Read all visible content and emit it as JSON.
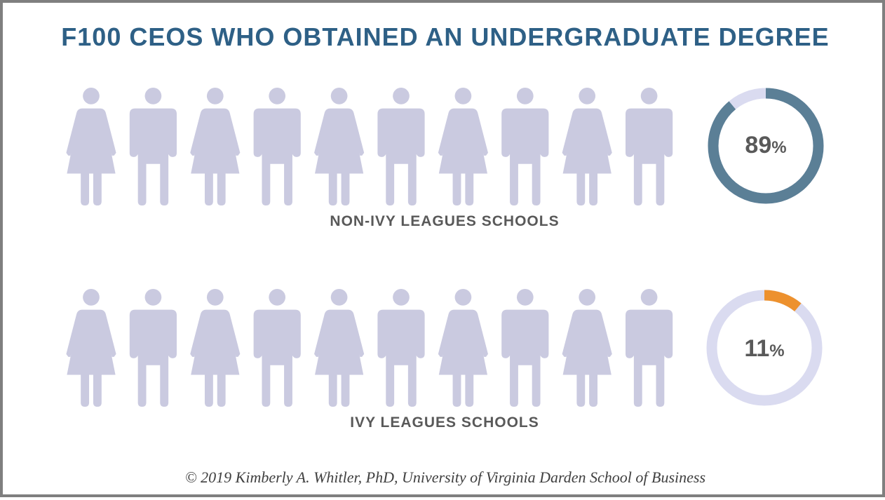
{
  "title": "F100 CEOS WHO OBTAINED AN UNDERGRADUATE DEGREE",
  "credit": "© 2019 Kimberly A. Whitler, PhD, University of Virginia Darden School of Business",
  "colors": {
    "title": "#2e6086",
    "non_ivy_fill": "#5b7f96",
    "ivy_fill": "#ed912e",
    "empty_fill": "#cacae0",
    "donut_track": "#dadbf0",
    "label_text": "#595959"
  },
  "chart_data": [
    {
      "type": "pictograph",
      "name": "NON-IVY LEAGUES SCHOOLS",
      "value": 89,
      "value_label": "89",
      "unit": "%",
      "icons_total": 10,
      "icon_pattern": [
        "female",
        "male",
        "female",
        "male",
        "female",
        "male",
        "female",
        "male",
        "female",
        "male"
      ],
      "icon_names": [
        "person-female-icon",
        "person-male-icon"
      ]
    },
    {
      "type": "pictograph",
      "name": "IVY LEAGUES SCHOOLS",
      "value": 11,
      "value_label": "11",
      "unit": "%",
      "icons_total": 10,
      "icon_pattern": [
        "female",
        "male",
        "female",
        "male",
        "female",
        "male",
        "female",
        "male",
        "female",
        "male"
      ],
      "icon_names": [
        "person-female-icon",
        "person-male-icon"
      ]
    }
  ]
}
